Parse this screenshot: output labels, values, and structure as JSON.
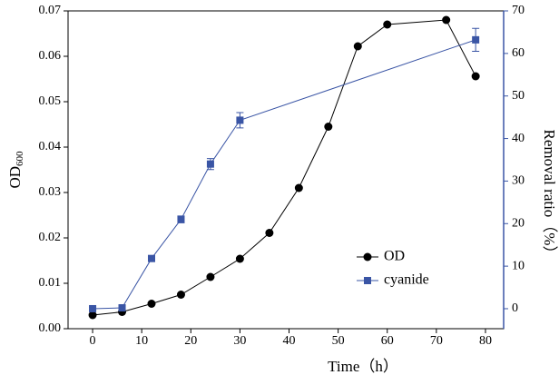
{
  "chart_data": {
    "type": "line",
    "xlabel": "Time（h）",
    "ylabel": "OD",
    "ylabel_subscript": "600",
    "y2label": "Removal ratio（%）",
    "xlim": [
      -5,
      83.7
    ],
    "xticks": [
      0,
      10,
      20,
      30,
      40,
      50,
      60,
      70,
      80
    ],
    "ylim": [
      0,
      0.07
    ],
    "yticks": [
      {
        "value": 0,
        "label": "0.00"
      },
      0.01,
      0.02,
      0.03,
      0.04,
      0.05,
      0.06,
      0.07
    ],
    "y2lim": [
      -4.7,
      70
    ],
    "y2ticks": [
      0,
      10,
      20,
      30,
      40,
      50,
      60,
      70
    ],
    "legend": "lower-right",
    "series": [
      {
        "name": "OD",
        "color": "#000000",
        "marker": "circle",
        "x": [
          0,
          6,
          12,
          18,
          24,
          30,
          36,
          42,
          48,
          54,
          60,
          72,
          78
        ],
        "values": [
          0.003,
          0.0037,
          0.0055,
          0.0075,
          0.0114,
          0.0154,
          0.0211,
          0.031,
          0.0445,
          0.0622,
          0.067,
          0.068,
          0.0556
        ]
      },
      {
        "name": "cyanide",
        "color": "#3a55a5",
        "marker": "square",
        "axis": "y2",
        "x": [
          0,
          6,
          12,
          18,
          24,
          30,
          78
        ],
        "values": [
          0,
          0.2,
          11.8,
          21,
          34,
          44.3,
          63.2
        ],
        "errors": [
          0.4,
          0.5,
          0.5,
          0.8,
          1.3,
          1.8,
          2.7
        ]
      }
    ]
  }
}
